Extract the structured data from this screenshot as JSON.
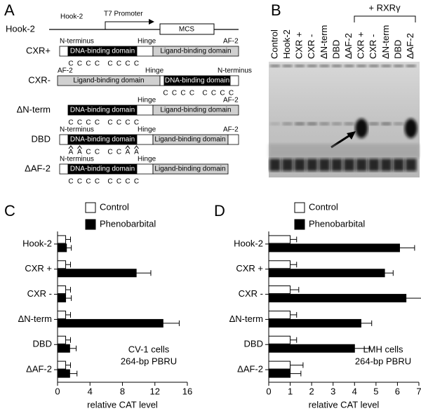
{
  "panel_a": {
    "label": "A",
    "vector": {
      "name": "Hook-2",
      "hook_label": "Hook-2",
      "promoter": "T7 Promoter",
      "mcs": "MCS"
    },
    "constructs": [
      {
        "name": "CXR+",
        "n_terminus": "N-terminus",
        "dbd": "DNA-binding domain",
        "hinge": "Hinge",
        "lbd": "Ligand-binding domain",
        "af2": "AF-2",
        "residues": [
          "C",
          "C",
          "C",
          "C",
          "C",
          "C",
          "C",
          "C"
        ]
      },
      {
        "name": "CXR-",
        "af2": "AF-2",
        "lbd": "Ligand-binding domain",
        "hinge": "Hinge",
        "dbd": "DNA-binding domain",
        "n_terminus": "N-terminus",
        "residues": [
          "C",
          "C",
          "C",
          "C",
          "C",
          "C",
          "C",
          "C"
        ]
      },
      {
        "name": "ΔN-term",
        "hinge": "Hinge",
        "af2": "AF-2",
        "dbd": "DNA-binding domain",
        "lbd": "Ligand-binding domain",
        "residues": [
          "C",
          "C",
          "C",
          "C",
          "C",
          "C",
          "C",
          "C"
        ]
      },
      {
        "name": "DBD",
        "n_terminus": "N-terminus",
        "hinge": "Hinge",
        "af2": "AF-2",
        "dbd": "DNA-binding domain",
        "lbd": "Ligand-binding domain",
        "residues": [
          "A",
          "A",
          "C",
          "C",
          "C",
          "C",
          "A",
          "A"
        ]
      },
      {
        "name": "ΔAF-2",
        "n_terminus": "N-terminus",
        "hinge": "Hinge",
        "dbd": "DNA-binding domain",
        "lbd": "Ligand-binding domain",
        "residues": [
          "C",
          "C",
          "C",
          "C",
          "C",
          "C",
          "C",
          "C"
        ]
      }
    ]
  },
  "panel_b": {
    "label": "B",
    "group_label": "+ RXRγ",
    "lanes": [
      "Control",
      "Hook-2",
      "CXR +",
      "CXR -",
      "ΔN-term",
      "DBD",
      "ΔAF-2",
      "CXR +",
      "CXR -",
      "ΔN-term",
      "DBD",
      "ΔAF-2"
    ]
  },
  "chart_data": [
    {
      "type": "bar",
      "orientation": "horizontal",
      "panel_label": "C",
      "categories": [
        "Hook-2",
        "CXR +",
        "CXR -",
        "ΔN-term",
        "DBD",
        "ΔAF-2"
      ],
      "series": [
        {
          "name": "Control",
          "color": "#ffffff",
          "values": [
            1.0,
            1.0,
            1.0,
            1.0,
            1.0,
            1.0
          ],
          "errors": [
            0.6,
            0.6,
            0.6,
            0.6,
            0.6,
            0.6
          ]
        },
        {
          "name": "Phenobarbital",
          "color": "#000000",
          "values": [
            1.1,
            9.7,
            1.0,
            13.0,
            1.5,
            1.5
          ],
          "errors": [
            0.6,
            1.8,
            0.7,
            2.0,
            0.8,
            0.9
          ]
        }
      ],
      "xlim": [
        0,
        16
      ],
      "xticks": [
        0,
        4,
        8,
        12,
        16
      ],
      "xlabel": "relative CAT level",
      "annotation": [
        "CV-1 cells",
        "264-bp PBRU"
      ]
    },
    {
      "type": "bar",
      "orientation": "horizontal",
      "panel_label": "D",
      "categories": [
        "Hook-2",
        "CXR +",
        "CXR -",
        "ΔN-term",
        "DBD",
        "ΔAF-2"
      ],
      "series": [
        {
          "name": "Control",
          "color": "#ffffff",
          "values": [
            1.0,
            1.0,
            1.0,
            1.0,
            1.0,
            1.0
          ],
          "errors": [
            0.3,
            0.3,
            0.4,
            0.3,
            0.3,
            0.6
          ]
        },
        {
          "name": "Phenobarbital",
          "color": "#000000",
          "values": [
            6.1,
            5.4,
            6.4,
            4.3,
            4.0,
            1.0
          ],
          "errors": [
            0.7,
            0.4,
            0.8,
            0.5,
            0.7,
            0.5
          ]
        }
      ],
      "xlim": [
        0,
        7
      ],
      "xticks": [
        0,
        1,
        2,
        3,
        4,
        5,
        6,
        7
      ],
      "xlabel": "relative CAT level",
      "annotation": [
        "LMH cells",
        "264-bp PBRU"
      ]
    }
  ]
}
